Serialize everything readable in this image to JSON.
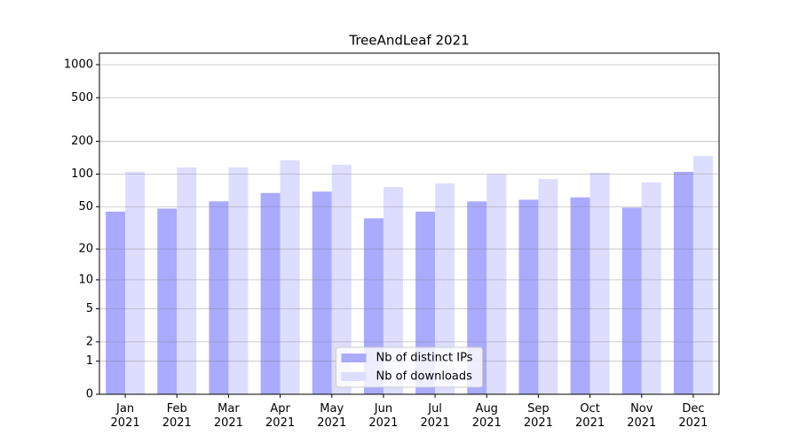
{
  "chart_data": {
    "type": "bar",
    "title": "TreeAndLeaf 2021",
    "categories": [
      "Jan\n2021",
      "Feb\n2021",
      "Mar\n2021",
      "Apr\n2021",
      "May\n2021",
      "Jun\n2021",
      "Jul\n2021",
      "Aug\n2021",
      "Sep\n2021",
      "Oct\n2021",
      "Nov\n2021",
      "Dec\n2021"
    ],
    "series": [
      {
        "name": "Nb of distinct IPs",
        "color": "#aaaaff",
        "values": [
          45,
          48,
          56,
          67,
          69,
          39,
          45,
          56,
          58,
          61,
          49,
          105
        ]
      },
      {
        "name": "Nb of downloads",
        "color": "#ddddff",
        "values": [
          105,
          115,
          115,
          134,
          122,
          76,
          82,
          100,
          90,
          103,
          84,
          147
        ]
      }
    ],
    "yscale": "log1p",
    "ylim": [
      0,
      1273
    ],
    "yticks": [
      0,
      1,
      2,
      5,
      10,
      20,
      50,
      100,
      200,
      500,
      1000
    ],
    "grid": true,
    "legend": "lower center"
  }
}
